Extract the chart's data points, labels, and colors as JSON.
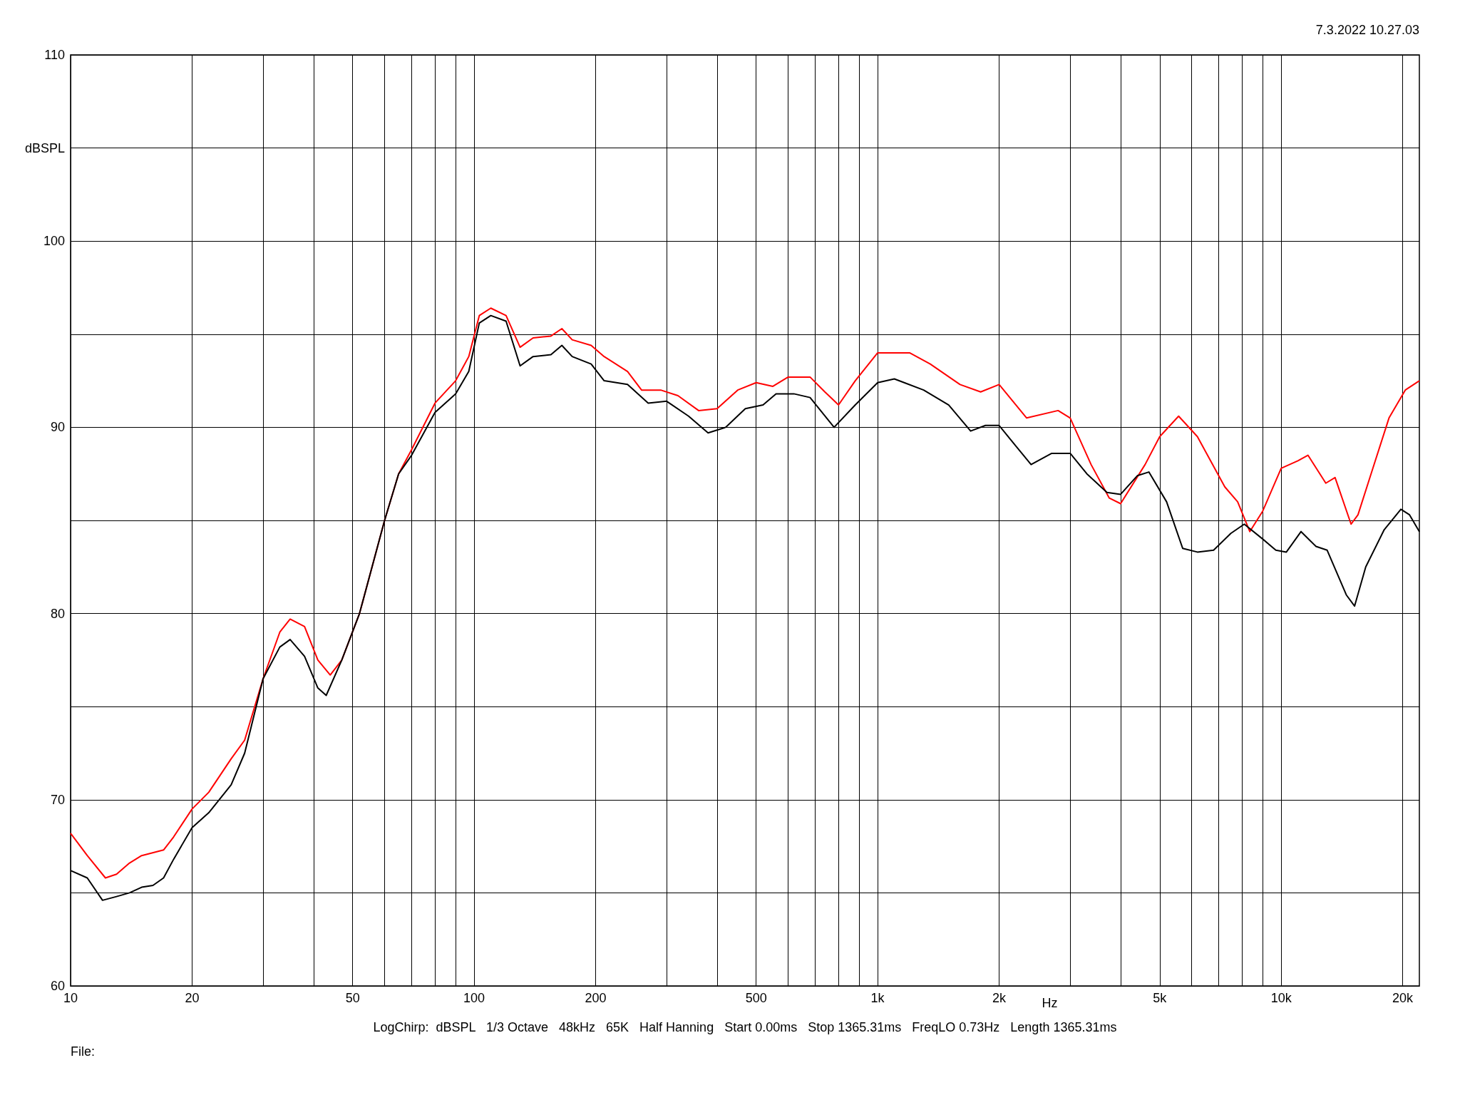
{
  "chart_data": {
    "type": "line",
    "xlabel": "Hz",
    "ylabel": "dBSPL",
    "log": "x",
    "grid": true,
    "marker": "none",
    "line_style": "solid",
    "annotations": [
      "7.3.2022 10.27.03",
      "LogChirp:  dBSPL   1/3 Octave   48kHz   65K   Half Hanning   Start 0.00ms   Stop 1365.31ms   FreqLO 0.73Hz   Length 1365.31ms",
      "File:"
    ],
    "xlim": [
      10,
      22000
    ],
    "xticks": [
      10,
      20,
      {
        "value": 30,
        "label": null
      },
      {
        "value": 40,
        "label": null
      },
      50,
      {
        "value": 60,
        "label": null
      },
      {
        "value": 70,
        "label": null
      },
      {
        "value": 80,
        "label": null
      },
      {
        "value": 90,
        "label": null
      },
      100,
      200,
      {
        "value": 300,
        "label": null
      },
      {
        "value": 400,
        "label": null
      },
      500,
      {
        "value": 600,
        "label": null
      },
      {
        "value": 700,
        "label": null
      },
      {
        "value": 800,
        "label": null
      },
      {
        "value": 900,
        "label": null
      },
      {
        "value": 1000,
        "label": "1k"
      },
      {
        "value": 2000,
        "label": "2k"
      },
      {
        "value": 3000,
        "label": null
      },
      {
        "value": 4000,
        "label": null
      },
      {
        "value": 5000,
        "label": "5k"
      },
      {
        "value": 6000,
        "label": null
      },
      {
        "value": 7000,
        "label": null
      },
      {
        "value": 8000,
        "label": null
      },
      {
        "value": 9000,
        "label": null
      },
      {
        "value": 10000,
        "label": "10k"
      },
      {
        "value": 20000,
        "label": "20k"
      }
    ],
    "ylim": [
      60,
      110
    ],
    "yticks": [
      60,
      {
        "value": 65,
        "label": null
      },
      70,
      {
        "value": 75,
        "label": null
      },
      80,
      {
        "value": 85,
        "label": null
      },
      90,
      {
        "value": 95,
        "label": null
      },
      100,
      {
        "value": 105,
        "label": null
      },
      110
    ],
    "series": [
      {
        "color": "#ff0000",
        "x": [
          10,
          11,
          12.2,
          13,
          14,
          15,
          17,
          18,
          20,
          22,
          25,
          27,
          30,
          33,
          35,
          38,
          41,
          44,
          47,
          52,
          60,
          65,
          70,
          80,
          90,
          97,
          103,
          110,
          120,
          130,
          140,
          155,
          165,
          175,
          195,
          210,
          240,
          260,
          290,
          320,
          360,
          400,
          450,
          500,
          550,
          600,
          680,
          740,
          800,
          880,
          1000,
          1200,
          1350,
          1600,
          1800,
          2000,
          2340,
          2800,
          3000,
          3380,
          3750,
          4000,
          4600,
          5000,
          5570,
          6200,
          7250,
          7800,
          8360,
          9000,
          10000,
          11000,
          11650,
          12900,
          13600,
          14900,
          15500,
          16700,
          18500,
          20300,
          22000
        ],
        "values": [
          68.2,
          67.0,
          65.8,
          66.0,
          66.6,
          67.0,
          67.3,
          68.0,
          69.5,
          70.4,
          72.2,
          73.2,
          76.5,
          79.0,
          79.7,
          79.3,
          77.5,
          76.7,
          77.5,
          80.0,
          85.0,
          87.5,
          88.8,
          91.3,
          92.5,
          93.8,
          96.0,
          96.4,
          96.0,
          94.3,
          94.8,
          94.9,
          95.3,
          94.7,
          94.4,
          93.8,
          93.0,
          92.0,
          92.0,
          91.7,
          90.9,
          91.0,
          92.0,
          92.4,
          92.2,
          92.7,
          92.7,
          91.9,
          91.2,
          92.5,
          94.0,
          94.0,
          93.4,
          92.3,
          91.9,
          92.3,
          90.5,
          90.9,
          90.5,
          88.0,
          86.2,
          85.9,
          88.0,
          89.5,
          90.6,
          89.5,
          86.8,
          86.0,
          84.4,
          85.5,
          87.8,
          88.2,
          88.5,
          87.0,
          87.3,
          84.8,
          85.3,
          87.5,
          90.5,
          92.0,
          92.5
        ]
      },
      {
        "color": "#000000",
        "x": [
          10,
          11,
          12,
          13,
          14,
          15,
          16,
          17,
          18,
          20,
          22,
          25,
          27,
          30,
          33,
          35,
          38,
          41,
          43,
          47,
          52,
          60,
          65,
          70,
          80,
          90,
          97,
          103,
          110,
          120,
          130,
          140,
          155,
          165,
          175,
          195,
          210,
          240,
          270,
          300,
          340,
          380,
          420,
          470,
          520,
          560,
          620,
          680,
          780,
          880,
          1000,
          1100,
          1300,
          1500,
          1700,
          1850,
          2000,
          2200,
          2400,
          2700,
          3000,
          3300,
          3700,
          4000,
          4400,
          4700,
          5200,
          5700,
          6200,
          6800,
          7500,
          8100,
          9000,
          9700,
          10300,
          11200,
          12200,
          13000,
          14500,
          15200,
          16200,
          18000,
          19800,
          20800,
          22000
        ],
        "values": [
          66.2,
          65.8,
          64.6,
          64.8,
          65.0,
          65.3,
          65.4,
          65.8,
          66.8,
          68.5,
          69.3,
          70.8,
          72.5,
          76.5,
          78.2,
          78.6,
          77.7,
          76.0,
          75.6,
          77.5,
          80.0,
          85.0,
          87.5,
          88.5,
          90.8,
          91.8,
          93.0,
          95.6,
          96.0,
          95.7,
          93.3,
          93.8,
          93.9,
          94.4,
          93.8,
          93.4,
          92.5,
          92.3,
          91.3,
          91.4,
          90.6,
          89.7,
          90.0,
          91.0,
          91.2,
          91.8,
          91.8,
          91.6,
          90.0,
          91.2,
          92.4,
          92.6,
          92.0,
          91.2,
          89.8,
          90.1,
          90.1,
          89.0,
          88.0,
          88.6,
          88.6,
          87.5,
          86.5,
          86.4,
          87.4,
          87.6,
          86.0,
          83.5,
          83.3,
          83.4,
          84.3,
          84.8,
          84.0,
          83.4,
          83.3,
          84.4,
          83.6,
          83.4,
          81.0,
          80.4,
          82.5,
          84.5,
          85.6,
          85.3,
          84.4
        ]
      }
    ]
  }
}
